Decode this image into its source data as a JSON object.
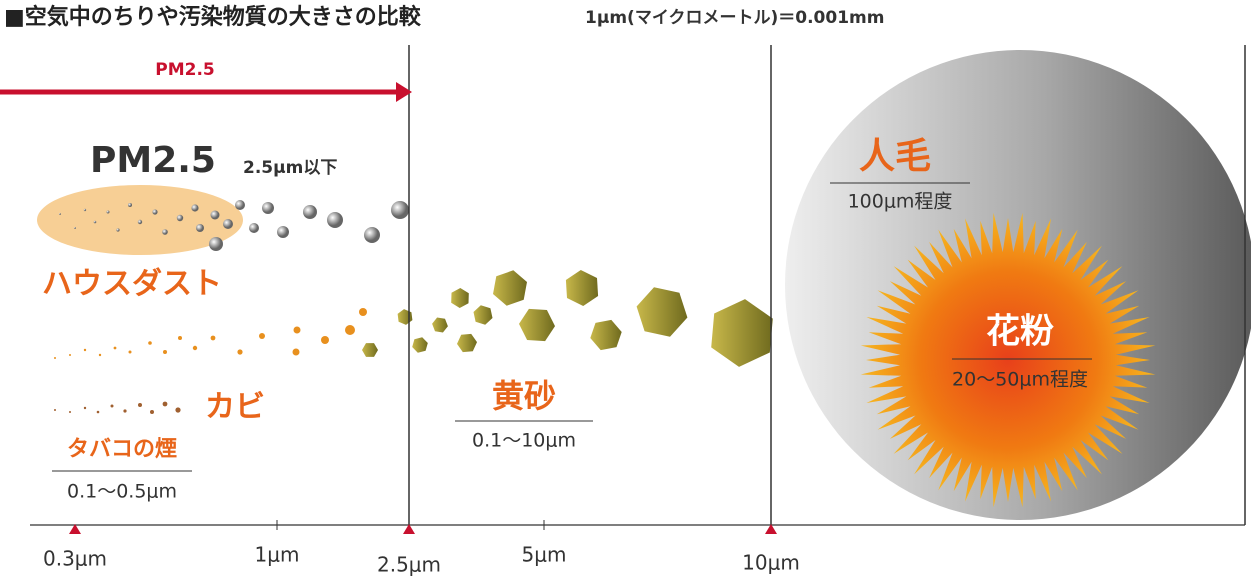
{
  "header": {
    "title": "■空気中のちりや汚染物質の大きさの比較",
    "note": "1μm(マイクロメートル)＝0.001mm"
  },
  "arrow": {
    "label": "PM2.5"
  },
  "labels": {
    "pm25": {
      "name": "PM2.5",
      "size": "2.5μm以下"
    },
    "house_dust": {
      "name": "ハウスダスト"
    },
    "mold": {
      "name": "カビ"
    },
    "tobacco": {
      "name": "タバコの煙",
      "size": "0.1〜0.5μm"
    },
    "yellow_sand": {
      "name": "黄砂",
      "size": "0.1〜10μm"
    },
    "hair": {
      "name": "人毛",
      "size": "100μm程度"
    },
    "pollen": {
      "name": "花粉",
      "size": "20〜50μm程度"
    }
  },
  "axis": {
    "ticks": [
      "0.3μm",
      "1μm",
      "2.5μm",
      "5μm",
      "10μm"
    ]
  }
}
